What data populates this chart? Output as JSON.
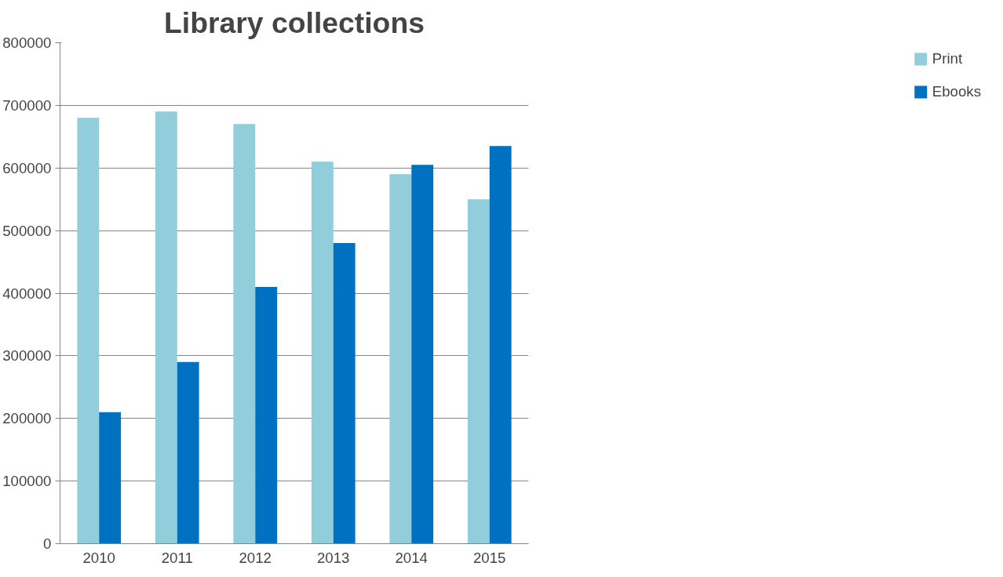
{
  "chart_data": {
    "type": "bar",
    "title": "Library collections",
    "categories": [
      "2010",
      "2011",
      "2012",
      "2013",
      "2014",
      "2015"
    ],
    "series": [
      {
        "name": "Print",
        "color": "#92cddc",
        "values": [
          680000,
          690000,
          670000,
          610000,
          590000,
          550000
        ]
      },
      {
        "name": "Ebooks",
        "color": "#0070c0",
        "values": [
          210000,
          290000,
          410000,
          480000,
          605000,
          635000
        ]
      }
    ],
    "ylim": [
      0,
      800000
    ],
    "yticks": [
      0,
      100000,
      200000,
      300000,
      400000,
      500000,
      600000,
      700000,
      800000
    ],
    "grid": "y",
    "legend": "right"
  }
}
